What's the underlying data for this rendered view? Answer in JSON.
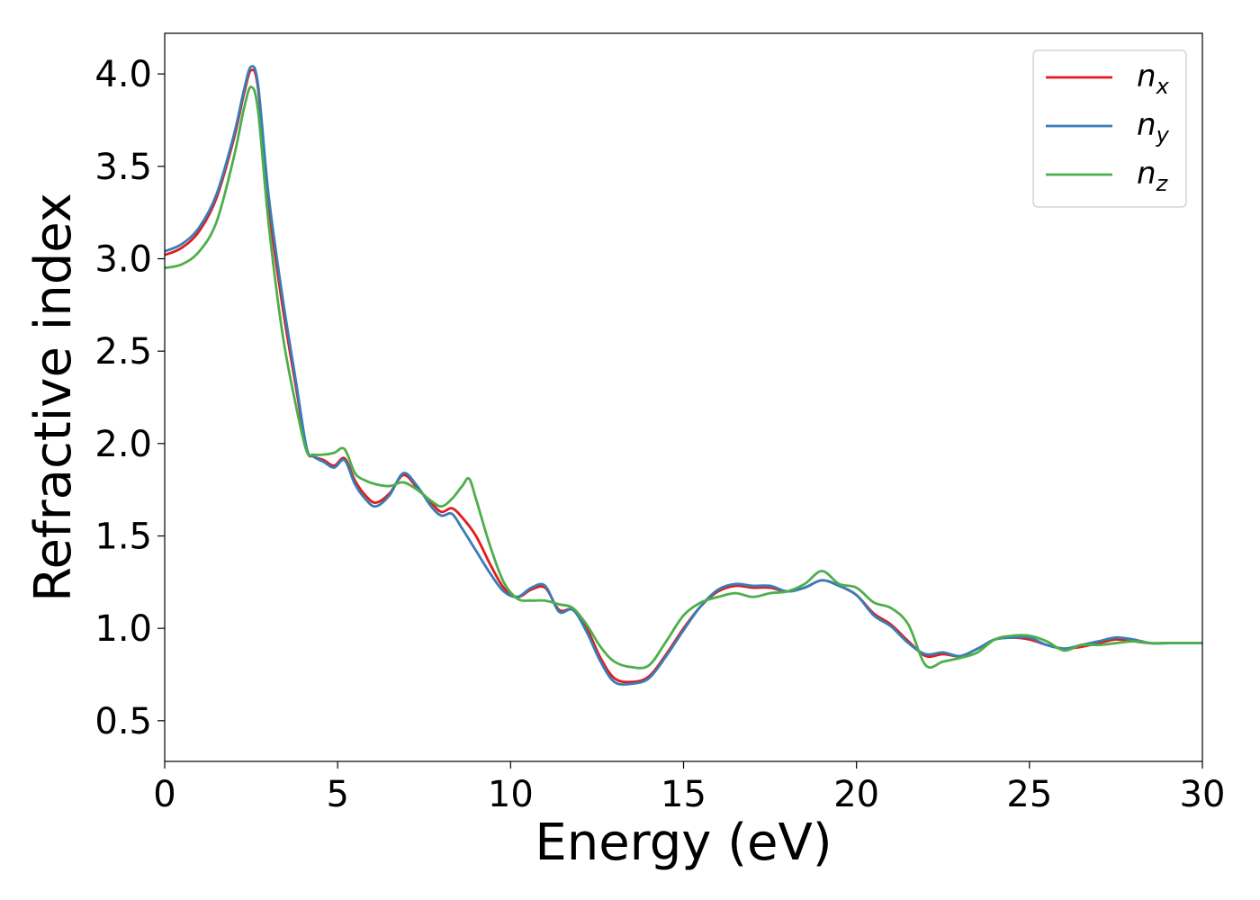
{
  "chart_data": {
    "type": "line",
    "xlabel": "Energy (eV)",
    "ylabel": "Refractive index",
    "xlim": [
      0,
      30
    ],
    "ylim": [
      0.28,
      4.22
    ],
    "xticks": [
      0,
      5,
      10,
      15,
      20,
      25,
      30
    ],
    "xtick_labels": [
      "0",
      "5",
      "10",
      "15",
      "20",
      "25",
      "30"
    ],
    "yticks": [
      0.5,
      1.0,
      1.5,
      2.0,
      2.5,
      3.0,
      3.5,
      4.0
    ],
    "ytick_labels": [
      "0.5",
      "1.0",
      "1.5",
      "2.0",
      "2.5",
      "3.0",
      "3.5",
      "4.0"
    ],
    "grid": false,
    "legend_position": "top-right",
    "series": [
      {
        "name": "n_x",
        "label_main": "n",
        "label_sub": "x",
        "color": "#e41a1c",
        "points": [
          [
            0,
            3.02
          ],
          [
            0.5,
            3.06
          ],
          [
            1.0,
            3.15
          ],
          [
            1.5,
            3.33
          ],
          [
            2.0,
            3.65
          ],
          [
            2.3,
            3.9
          ],
          [
            2.5,
            4.02
          ],
          [
            2.7,
            3.92
          ],
          [
            3.0,
            3.3
          ],
          [
            3.4,
            2.75
          ],
          [
            3.8,
            2.3
          ],
          [
            4.1,
            1.97
          ],
          [
            4.3,
            1.93
          ],
          [
            4.6,
            1.91
          ],
          [
            4.9,
            1.88
          ],
          [
            5.2,
            1.92
          ],
          [
            5.5,
            1.8
          ],
          [
            5.8,
            1.72
          ],
          [
            6.1,
            1.68
          ],
          [
            6.5,
            1.73
          ],
          [
            6.9,
            1.83
          ],
          [
            7.3,
            1.76
          ],
          [
            7.7,
            1.68
          ],
          [
            8.0,
            1.63
          ],
          [
            8.3,
            1.65
          ],
          [
            8.6,
            1.6
          ],
          [
            9.0,
            1.5
          ],
          [
            9.4,
            1.35
          ],
          [
            9.8,
            1.22
          ],
          [
            10.2,
            1.17
          ],
          [
            10.6,
            1.21
          ],
          [
            11.0,
            1.22
          ],
          [
            11.4,
            1.1
          ],
          [
            11.8,
            1.1
          ],
          [
            12.2,
            1.0
          ],
          [
            12.6,
            0.84
          ],
          [
            13.0,
            0.73
          ],
          [
            13.5,
            0.71
          ],
          [
            14.0,
            0.74
          ],
          [
            14.5,
            0.86
          ],
          [
            15.0,
            1.0
          ],
          [
            15.5,
            1.12
          ],
          [
            16.0,
            1.2
          ],
          [
            16.5,
            1.23
          ],
          [
            17.0,
            1.22
          ],
          [
            17.5,
            1.22
          ],
          [
            18.0,
            1.2
          ],
          [
            18.5,
            1.22
          ],
          [
            19.0,
            1.26
          ],
          [
            19.5,
            1.23
          ],
          [
            20.0,
            1.18
          ],
          [
            20.5,
            1.08
          ],
          [
            21.0,
            1.02
          ],
          [
            21.5,
            0.93
          ],
          [
            22.0,
            0.85
          ],
          [
            22.5,
            0.86
          ],
          [
            23.0,
            0.85
          ],
          [
            23.5,
            0.89
          ],
          [
            24.0,
            0.94
          ],
          [
            24.5,
            0.95
          ],
          [
            25.0,
            0.94
          ],
          [
            25.5,
            0.91
          ],
          [
            26.0,
            0.89
          ],
          [
            26.5,
            0.9
          ],
          [
            27.0,
            0.92
          ],
          [
            27.5,
            0.94
          ],
          [
            28.0,
            0.93
          ],
          [
            28.5,
            0.92
          ],
          [
            29.0,
            0.92
          ],
          [
            29.5,
            0.92
          ],
          [
            30.0,
            0.92
          ]
        ]
      },
      {
        "name": "n_y",
        "label_main": "n",
        "label_sub": "y",
        "color": "#377eb8",
        "points": [
          [
            0,
            3.04
          ],
          [
            0.5,
            3.08
          ],
          [
            1.0,
            3.17
          ],
          [
            1.5,
            3.35
          ],
          [
            2.0,
            3.67
          ],
          [
            2.3,
            3.92
          ],
          [
            2.5,
            4.04
          ],
          [
            2.7,
            3.94
          ],
          [
            3.0,
            3.35
          ],
          [
            3.4,
            2.8
          ],
          [
            3.8,
            2.33
          ],
          [
            4.1,
            1.98
          ],
          [
            4.3,
            1.93
          ],
          [
            4.6,
            1.9
          ],
          [
            4.9,
            1.87
          ],
          [
            5.2,
            1.91
          ],
          [
            5.5,
            1.78
          ],
          [
            5.8,
            1.7
          ],
          [
            6.1,
            1.66
          ],
          [
            6.5,
            1.72
          ],
          [
            6.9,
            1.84
          ],
          [
            7.3,
            1.77
          ],
          [
            7.7,
            1.66
          ],
          [
            8.0,
            1.61
          ],
          [
            8.3,
            1.62
          ],
          [
            8.6,
            1.54
          ],
          [
            9.0,
            1.42
          ],
          [
            9.4,
            1.3
          ],
          [
            9.8,
            1.2
          ],
          [
            10.2,
            1.17
          ],
          [
            10.6,
            1.22
          ],
          [
            11.0,
            1.23
          ],
          [
            11.4,
            1.09
          ],
          [
            11.8,
            1.1
          ],
          [
            12.2,
            0.98
          ],
          [
            12.6,
            0.82
          ],
          [
            13.0,
            0.71
          ],
          [
            13.5,
            0.7
          ],
          [
            14.0,
            0.73
          ],
          [
            14.5,
            0.85
          ],
          [
            15.0,
            0.99
          ],
          [
            15.5,
            1.12
          ],
          [
            16.0,
            1.21
          ],
          [
            16.5,
            1.24
          ],
          [
            17.0,
            1.23
          ],
          [
            17.5,
            1.23
          ],
          [
            18.0,
            1.2
          ],
          [
            18.5,
            1.22
          ],
          [
            19.0,
            1.26
          ],
          [
            19.5,
            1.23
          ],
          [
            20.0,
            1.18
          ],
          [
            20.5,
            1.07
          ],
          [
            21.0,
            1.01
          ],
          [
            21.5,
            0.92
          ],
          [
            22.0,
            0.86
          ],
          [
            22.5,
            0.87
          ],
          [
            23.0,
            0.85
          ],
          [
            23.5,
            0.89
          ],
          [
            24.0,
            0.94
          ],
          [
            24.5,
            0.95
          ],
          [
            25.0,
            0.95
          ],
          [
            25.5,
            0.91
          ],
          [
            26.0,
            0.89
          ],
          [
            26.5,
            0.91
          ],
          [
            27.0,
            0.93
          ],
          [
            27.5,
            0.95
          ],
          [
            28.0,
            0.94
          ],
          [
            28.5,
            0.92
          ],
          [
            29.0,
            0.92
          ],
          [
            29.5,
            0.92
          ],
          [
            30.0,
            0.92
          ]
        ]
      },
      {
        "name": "n_z",
        "label_main": "n",
        "label_sub": "z",
        "color": "#4daf4a",
        "points": [
          [
            0,
            2.95
          ],
          [
            0.5,
            2.97
          ],
          [
            1.0,
            3.04
          ],
          [
            1.5,
            3.2
          ],
          [
            2.0,
            3.55
          ],
          [
            2.3,
            3.82
          ],
          [
            2.5,
            3.93
          ],
          [
            2.7,
            3.8
          ],
          [
            3.0,
            3.2
          ],
          [
            3.4,
            2.6
          ],
          [
            3.8,
            2.2
          ],
          [
            4.1,
            1.96
          ],
          [
            4.3,
            1.94
          ],
          [
            4.6,
            1.94
          ],
          [
            4.9,
            1.95
          ],
          [
            5.2,
            1.97
          ],
          [
            5.5,
            1.84
          ],
          [
            5.8,
            1.8
          ],
          [
            6.1,
            1.78
          ],
          [
            6.5,
            1.77
          ],
          [
            6.9,
            1.79
          ],
          [
            7.3,
            1.75
          ],
          [
            7.7,
            1.69
          ],
          [
            8.0,
            1.66
          ],
          [
            8.3,
            1.7
          ],
          [
            8.6,
            1.77
          ],
          [
            8.8,
            1.81
          ],
          [
            9.0,
            1.7
          ],
          [
            9.4,
            1.45
          ],
          [
            9.8,
            1.25
          ],
          [
            10.2,
            1.16
          ],
          [
            10.6,
            1.15
          ],
          [
            11.0,
            1.15
          ],
          [
            11.4,
            1.13
          ],
          [
            11.8,
            1.11
          ],
          [
            12.2,
            1.02
          ],
          [
            12.6,
            0.9
          ],
          [
            13.0,
            0.82
          ],
          [
            13.5,
            0.79
          ],
          [
            14.0,
            0.8
          ],
          [
            14.5,
            0.93
          ],
          [
            15.0,
            1.07
          ],
          [
            15.5,
            1.14
          ],
          [
            16.0,
            1.17
          ],
          [
            16.5,
            1.19
          ],
          [
            17.0,
            1.17
          ],
          [
            17.5,
            1.19
          ],
          [
            18.0,
            1.2
          ],
          [
            18.5,
            1.24
          ],
          [
            19.0,
            1.31
          ],
          [
            19.5,
            1.24
          ],
          [
            20.0,
            1.22
          ],
          [
            20.5,
            1.14
          ],
          [
            21.0,
            1.11
          ],
          [
            21.5,
            1.02
          ],
          [
            22.0,
            0.8
          ],
          [
            22.5,
            0.82
          ],
          [
            23.0,
            0.84
          ],
          [
            23.5,
            0.87
          ],
          [
            24.0,
            0.94
          ],
          [
            24.5,
            0.96
          ],
          [
            25.0,
            0.96
          ],
          [
            25.5,
            0.93
          ],
          [
            26.0,
            0.88
          ],
          [
            26.5,
            0.91
          ],
          [
            27.0,
            0.91
          ],
          [
            27.5,
            0.92
          ],
          [
            28.0,
            0.93
          ],
          [
            28.5,
            0.92
          ],
          [
            29.0,
            0.92
          ],
          [
            29.5,
            0.92
          ],
          [
            30.0,
            0.92
          ]
        ]
      }
    ]
  }
}
